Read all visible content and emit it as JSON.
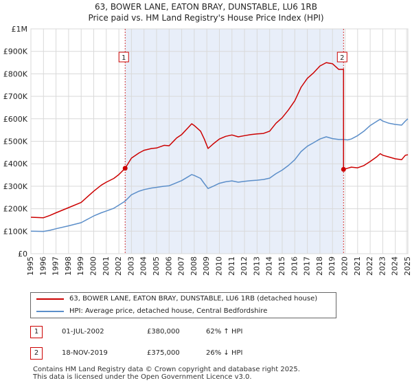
{
  "chart_data": {
    "type": "line",
    "title": "63, BOWER LANE, EATON BRAY, DUNSTABLE, LU6 1RB",
    "subtitle": "Price paid vs. HM Land Registry's House Price Index (HPI)",
    "xlim": [
      1995,
      2025
    ],
    "ylim": [
      0,
      1000000
    ],
    "x_ticks": [
      1995,
      1996,
      1997,
      1998,
      1999,
      2000,
      2001,
      2002,
      2003,
      2004,
      2005,
      2006,
      2007,
      2008,
      2009,
      2010,
      2011,
      2012,
      2013,
      2014,
      2015,
      2016,
      2017,
      2018,
      2019,
      2020,
      2021,
      2022,
      2023,
      2024,
      2025
    ],
    "y_ticks": [
      {
        "value": 0,
        "label": "£0"
      },
      {
        "value": 100000,
        "label": "£100K"
      },
      {
        "value": 200000,
        "label": "£200K"
      },
      {
        "value": 300000,
        "label": "£300K"
      },
      {
        "value": 400000,
        "label": "£400K"
      },
      {
        "value": 500000,
        "label": "£500K"
      },
      {
        "value": 600000,
        "label": "£600K"
      },
      {
        "value": 700000,
        "label": "£700K"
      },
      {
        "value": 800000,
        "label": "£800K"
      },
      {
        "value": 900000,
        "label": "£900K"
      },
      {
        "value": 1000000,
        "label": "£1M"
      }
    ],
    "shaded_period": [
      2002.5,
      2019.88
    ],
    "series": [
      {
        "name": "63, BOWER LANE, EATON BRAY, DUNSTABLE, LU6 1RB (detached house)",
        "color": "#cc0000",
        "points": [
          [
            1995.0,
            162000
          ],
          [
            1996.0,
            160000
          ],
          [
            1996.5,
            170000
          ],
          [
            1997.0,
            182000
          ],
          [
            1998.0,
            205000
          ],
          [
            1999.0,
            228000
          ],
          [
            1999.6,
            258000
          ],
          [
            2000.0,
            278000
          ],
          [
            2000.6,
            305000
          ],
          [
            2001.0,
            318000
          ],
          [
            2001.6,
            335000
          ],
          [
            2002.0,
            352000
          ],
          [
            2002.5,
            380000
          ],
          [
            2003.0,
            425000
          ],
          [
            2003.6,
            448000
          ],
          [
            2004.0,
            460000
          ],
          [
            2004.6,
            468000
          ],
          [
            2005.0,
            470000
          ],
          [
            2005.6,
            482000
          ],
          [
            2006.0,
            480000
          ],
          [
            2006.6,
            515000
          ],
          [
            2007.0,
            530000
          ],
          [
            2007.5,
            560000
          ],
          [
            2007.8,
            578000
          ],
          [
            2008.0,
            570000
          ],
          [
            2008.5,
            545000
          ],
          [
            2008.8,
            510000
          ],
          [
            2009.1,
            468000
          ],
          [
            2009.5,
            488000
          ],
          [
            2010.0,
            510000
          ],
          [
            2010.5,
            522000
          ],
          [
            2011.0,
            528000
          ],
          [
            2011.5,
            520000
          ],
          [
            2012.0,
            525000
          ],
          [
            2012.5,
            530000
          ],
          [
            2013.0,
            533000
          ],
          [
            2013.5,
            535000
          ],
          [
            2014.0,
            545000
          ],
          [
            2014.5,
            580000
          ],
          [
            2015.0,
            605000
          ],
          [
            2015.5,
            640000
          ],
          [
            2016.0,
            680000
          ],
          [
            2016.5,
            740000
          ],
          [
            2017.0,
            780000
          ],
          [
            2017.5,
            805000
          ],
          [
            2018.0,
            835000
          ],
          [
            2018.5,
            850000
          ],
          [
            2019.0,
            845000
          ],
          [
            2019.5,
            820000
          ],
          [
            2019.88,
            820000
          ],
          [
            2019.88,
            375000
          ],
          [
            2020.2,
            380000
          ],
          [
            2020.5,
            385000
          ],
          [
            2021.0,
            382000
          ],
          [
            2021.5,
            392000
          ],
          [
            2022.0,
            410000
          ],
          [
            2022.5,
            430000
          ],
          [
            2022.8,
            445000
          ],
          [
            2023.0,
            438000
          ],
          [
            2023.5,
            430000
          ],
          [
            2024.0,
            422000
          ],
          [
            2024.5,
            418000
          ],
          [
            2024.8,
            438000
          ],
          [
            2025.0,
            440000
          ]
        ]
      },
      {
        "name": "HPI: Average price, detached house, Central Bedfordshire",
        "color": "#5b8ec9",
        "points": [
          [
            1995.0,
            100000
          ],
          [
            1996.0,
            99000
          ],
          [
            1996.5,
            104000
          ],
          [
            1997.0,
            111000
          ],
          [
            1998.0,
            124000
          ],
          [
            1999.0,
            138000
          ],
          [
            1999.6,
            156000
          ],
          [
            2000.0,
            168000
          ],
          [
            2000.6,
            182000
          ],
          [
            2001.0,
            190000
          ],
          [
            2001.6,
            202000
          ],
          [
            2002.0,
            216000
          ],
          [
            2002.5,
            234000
          ],
          [
            2003.0,
            262000
          ],
          [
            2003.6,
            278000
          ],
          [
            2004.0,
            285000
          ],
          [
            2004.6,
            292000
          ],
          [
            2005.0,
            295000
          ],
          [
            2005.6,
            300000
          ],
          [
            2006.0,
            302000
          ],
          [
            2006.6,
            316000
          ],
          [
            2007.0,
            325000
          ],
          [
            2007.5,
            342000
          ],
          [
            2007.8,
            352000
          ],
          [
            2008.0,
            348000
          ],
          [
            2008.5,
            335000
          ],
          [
            2008.8,
            312000
          ],
          [
            2009.1,
            290000
          ],
          [
            2009.5,
            300000
          ],
          [
            2010.0,
            313000
          ],
          [
            2010.5,
            320000
          ],
          [
            2011.0,
            324000
          ],
          [
            2011.5,
            318000
          ],
          [
            2012.0,
            322000
          ],
          [
            2012.5,
            325000
          ],
          [
            2013.0,
            327000
          ],
          [
            2013.5,
            330000
          ],
          [
            2014.0,
            336000
          ],
          [
            2014.5,
            356000
          ],
          [
            2015.0,
            372000
          ],
          [
            2015.5,
            393000
          ],
          [
            2016.0,
            418000
          ],
          [
            2016.5,
            454000
          ],
          [
            2017.0,
            478000
          ],
          [
            2017.5,
            494000
          ],
          [
            2018.0,
            510000
          ],
          [
            2018.5,
            520000
          ],
          [
            2019.0,
            512000
          ],
          [
            2019.5,
            508000
          ],
          [
            2019.88,
            508000
          ],
          [
            2020.2,
            506000
          ],
          [
            2020.5,
            510000
          ],
          [
            2021.0,
            525000
          ],
          [
            2021.5,
            545000
          ],
          [
            2022.0,
            570000
          ],
          [
            2022.5,
            588000
          ],
          [
            2022.8,
            598000
          ],
          [
            2023.0,
            590000
          ],
          [
            2023.5,
            580000
          ],
          [
            2024.0,
            575000
          ],
          [
            2024.5,
            572000
          ],
          [
            2024.8,
            590000
          ],
          [
            2025.0,
            600000
          ]
        ]
      }
    ],
    "annotations": [
      {
        "label": "1",
        "x": 2002.5,
        "value": 380000
      },
      {
        "label": "2",
        "x": 2019.88,
        "value": 375000
      }
    ]
  },
  "legend": {
    "items": [
      {
        "label": "63, BOWER LANE, EATON BRAY, DUNSTABLE, LU6 1RB (detached house)",
        "color": "#cc0000"
      },
      {
        "label": "HPI: Average price, detached house, Central Bedfordshire",
        "color": "#5b8ec9"
      }
    ]
  },
  "transactions": [
    {
      "num": "1",
      "date": "01-JUL-2002",
      "price": "£380,000",
      "hpi": "62% ↑ HPI"
    },
    {
      "num": "2",
      "date": "18-NOV-2019",
      "price": "£375,000",
      "hpi": "26% ↓ HPI"
    }
  ],
  "footer": {
    "line1": "Contains HM Land Registry data © Crown copyright and database right 2025.",
    "line2": "This data is licensed under the Open Government Licence v3.0."
  }
}
